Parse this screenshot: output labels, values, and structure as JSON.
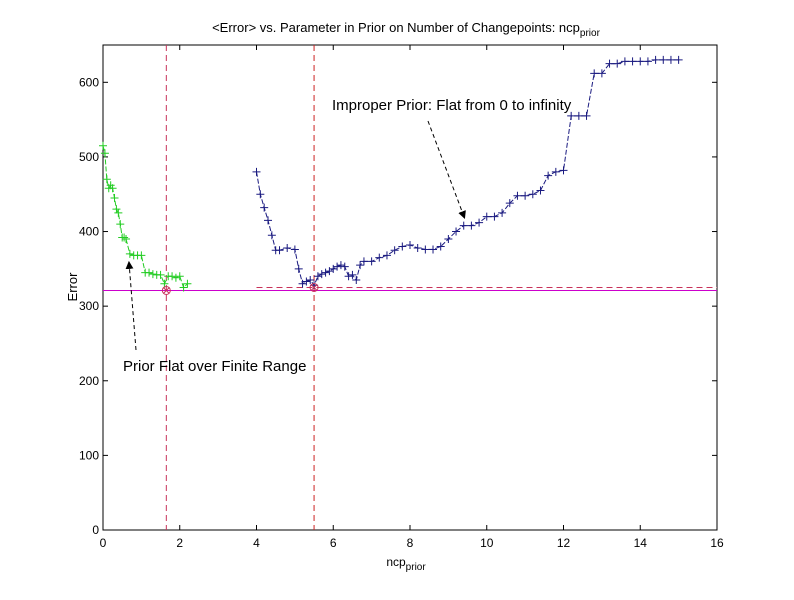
{
  "chart_data": {
    "type": "line",
    "title": {
      "main": "<Error> vs. Parameter in Prior on Number of Changepoints: ncp",
      "sub": "prior"
    },
    "xlabel": {
      "main": "ncp",
      "sub": "prior"
    },
    "ylabel": "Error",
    "xlim": [
      0,
      16
    ],
    "ylim": [
      0,
      650
    ],
    "x_ticks": [
      0,
      2,
      4,
      6,
      8,
      10,
      12,
      14,
      16
    ],
    "y_ticks": [
      0,
      100,
      200,
      300,
      400,
      500,
      600
    ],
    "grid": false,
    "series": [
      {
        "color": "#22cc22",
        "x": [
          0,
          0.05,
          0.1,
          0.15,
          0.2,
          0.25,
          0.3,
          0.35,
          0.4,
          0.45,
          0.5,
          0.55,
          0.6,
          0.7,
          0.8,
          0.9,
          1.0,
          1.1,
          1.2,
          1.3,
          1.4,
          1.5,
          1.6,
          1.7,
          1.8,
          1.9,
          2.0,
          2.1,
          2.2
        ],
        "y": [
          515,
          505,
          470,
          458,
          462,
          458,
          445,
          430,
          425,
          410,
          392,
          392,
          390,
          370,
          368,
          368,
          368,
          345,
          345,
          343,
          342,
          342,
          330,
          340,
          340,
          338,
          340,
          325,
          330
        ]
      },
      {
        "color": "#1a1a80",
        "x": [
          4.0,
          4.1,
          4.2,
          4.3,
          4.4,
          4.5,
          4.6,
          4.8,
          5.0,
          5.1,
          5.2,
          5.3,
          5.4,
          5.5,
          5.6,
          5.7,
          5.8,
          5.9,
          6.0,
          6.1,
          6.2,
          6.3,
          6.4,
          6.5,
          6.6,
          6.7,
          6.8,
          7.0,
          7.2,
          7.4,
          7.6,
          7.8,
          8.0,
          8.2,
          8.4,
          8.6,
          8.8,
          9.0,
          9.2,
          9.4,
          9.6,
          9.8,
          10.0,
          10.2,
          10.4,
          10.6,
          10.8,
          11.0,
          11.2,
          11.4,
          11.6,
          11.8,
          12.0,
          12.2,
          12.4,
          12.6,
          12.8,
          13.0,
          13.2,
          13.4,
          13.6,
          13.8,
          14.0,
          14.2,
          14.4,
          14.6,
          14.8,
          15.0
        ],
        "y": [
          480,
          450,
          432,
          415,
          395,
          375,
          375,
          378,
          376,
          350,
          330,
          333,
          335,
          328,
          340,
          343,
          345,
          347,
          350,
          353,
          355,
          353,
          340,
          342,
          335,
          355,
          360,
          360,
          365,
          368,
          375,
          380,
          382,
          378,
          376,
          376,
          380,
          390,
          400,
          408,
          408,
          412,
          420,
          420,
          425,
          438,
          448,
          448,
          450,
          455,
          475,
          480,
          482,
          555,
          555,
          555,
          612,
          612,
          625,
          625,
          628,
          628,
          628,
          628,
          630,
          630,
          630,
          630
        ]
      }
    ],
    "reference_lines": [
      {
        "orientation": "horizontal",
        "value": 321,
        "xrange": [
          0,
          16
        ],
        "color": "#cc00cc",
        "style": "solid"
      },
      {
        "orientation": "horizontal",
        "value": 325,
        "xrange": [
          4,
          16
        ],
        "color": "#c8325a",
        "style": "dashed"
      },
      {
        "orientation": "vertical",
        "value": 1.65,
        "color": "#c8325a",
        "style": "dashed"
      },
      {
        "orientation": "vertical",
        "value": 5.5,
        "color": "#cc2222",
        "style": "dashed"
      }
    ],
    "minimum_markers": [
      {
        "x": 1.65,
        "y": 321,
        "color": "#c8325a"
      },
      {
        "x": 5.5,
        "y": 325,
        "color": "#c8325a"
      }
    ],
    "annotations": [
      {
        "text": "Improper Prior: Flat from 0 to infinity",
        "target": [
          9.5,
          410
        ]
      },
      {
        "text": "Prior Flat over Finite Range",
        "target": [
          0.65,
          370
        ]
      }
    ]
  }
}
